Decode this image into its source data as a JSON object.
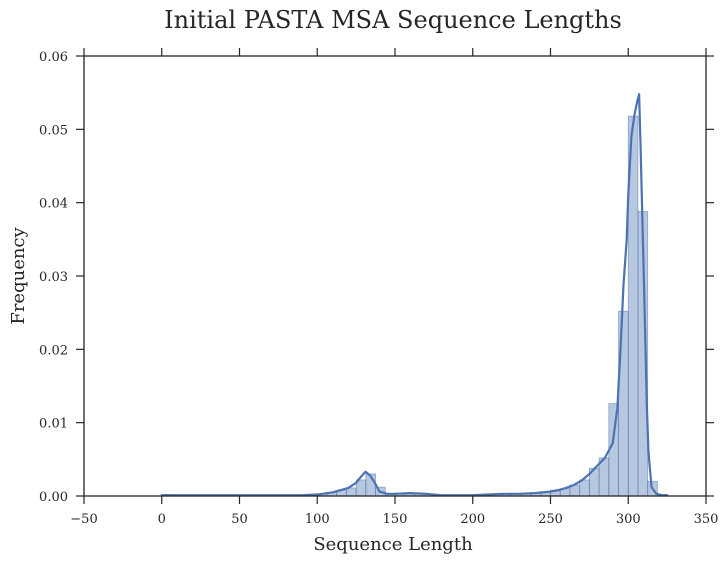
{
  "chart_data": {
    "type": "bar",
    "title": "Initial PASTA MSA Sequence Lengths",
    "xlabel": "Sequence Length",
    "ylabel": "Frequency",
    "xlim": [
      -50,
      350
    ],
    "ylim": [
      0,
      0.06
    ],
    "xticks": [
      -50,
      0,
      50,
      100,
      150,
      200,
      250,
      300,
      350
    ],
    "yticks": [
      0.0,
      0.01,
      0.02,
      0.03,
      0.04,
      0.05,
      0.06
    ],
    "xtick_labels": [
      "−50",
      "0",
      "50",
      "100",
      "150",
      "200",
      "250",
      "300",
      "350"
    ],
    "ytick_labels": [
      "0.00",
      "0.01",
      "0.02",
      "0.03",
      "0.04",
      "0.05",
      "0.06"
    ],
    "grid": false,
    "colors": {
      "bar_fill": "#4c72b0",
      "kde_line": "#4c72b0",
      "axes": "#262626",
      "text": "#262626"
    },
    "histogram": {
      "bin_edges": [
        0,
        6.25,
        12.5,
        18.75,
        25,
        31.25,
        37.5,
        43.75,
        50,
        56.25,
        62.5,
        68.75,
        75,
        81.25,
        87.5,
        93.75,
        100,
        106.25,
        112.5,
        118.75,
        125,
        131.25,
        137.5,
        143.75,
        150,
        156.25,
        162.5,
        168.75,
        175,
        181.25,
        187.5,
        193.75,
        200,
        206.25,
        212.5,
        218.75,
        225,
        231.25,
        237.5,
        243.75,
        250,
        256.25,
        262.5,
        268.75,
        275,
        281.25,
        287.5,
        293.75,
        300,
        306.25,
        312.5,
        318.75,
        325
      ],
      "values": [
        0.0002,
        0.0001,
        0.0001,
        0.0001,
        0.0001,
        0.0001,
        0.0001,
        0.0001,
        0.0001,
        0.0001,
        0.0001,
        0.0001,
        0.0001,
        0.0001,
        0.0001,
        0.0002,
        0.0003,
        0.0005,
        0.0008,
        0.0011,
        0.0022,
        0.003,
        0.0012,
        0.0003,
        0.0004,
        0.0003,
        0.0003,
        0.0002,
        0.0001,
        0.0001,
        0.0001,
        0.0001,
        0.0002,
        0.0002,
        0.0003,
        0.0003,
        0.0003,
        0.0003,
        0.0004,
        0.0005,
        0.0008,
        0.001,
        0.0015,
        0.0022,
        0.0038,
        0.0052,
        0.0126,
        0.0252,
        0.0518,
        0.0388,
        0.002,
        0.0002
      ]
    },
    "kde": {
      "x": [
        0,
        20,
        40,
        60,
        80,
        90,
        100,
        110,
        115,
        120,
        125,
        128,
        131,
        134,
        137,
        140,
        145,
        150,
        160,
        170,
        180,
        190,
        200,
        210,
        220,
        230,
        240,
        250,
        255,
        260,
        265,
        270,
        275,
        280,
        285,
        290,
        293,
        295,
        297,
        299,
        300,
        302,
        304,
        306,
        307,
        308,
        310,
        312,
        313,
        315,
        318,
        322,
        325
      ],
      "y": [
        0.0001,
        0.0001,
        0.0001,
        0.0001,
        0.0001,
        0.0001,
        0.0002,
        0.0005,
        0.0008,
        0.0011,
        0.0018,
        0.0026,
        0.0033,
        0.0028,
        0.0018,
        0.0006,
        0.0003,
        0.0003,
        0.0004,
        0.0003,
        0.0001,
        0.0001,
        0.0001,
        0.0002,
        0.0003,
        0.0003,
        0.0004,
        0.0006,
        0.0008,
        0.0011,
        0.0015,
        0.0021,
        0.003,
        0.0041,
        0.0052,
        0.0072,
        0.012,
        0.02,
        0.029,
        0.035,
        0.041,
        0.049,
        0.052,
        0.054,
        0.0548,
        0.047,
        0.03,
        0.012,
        0.006,
        0.0012,
        0.0003,
        0.0001,
        0.0001
      ]
    }
  }
}
